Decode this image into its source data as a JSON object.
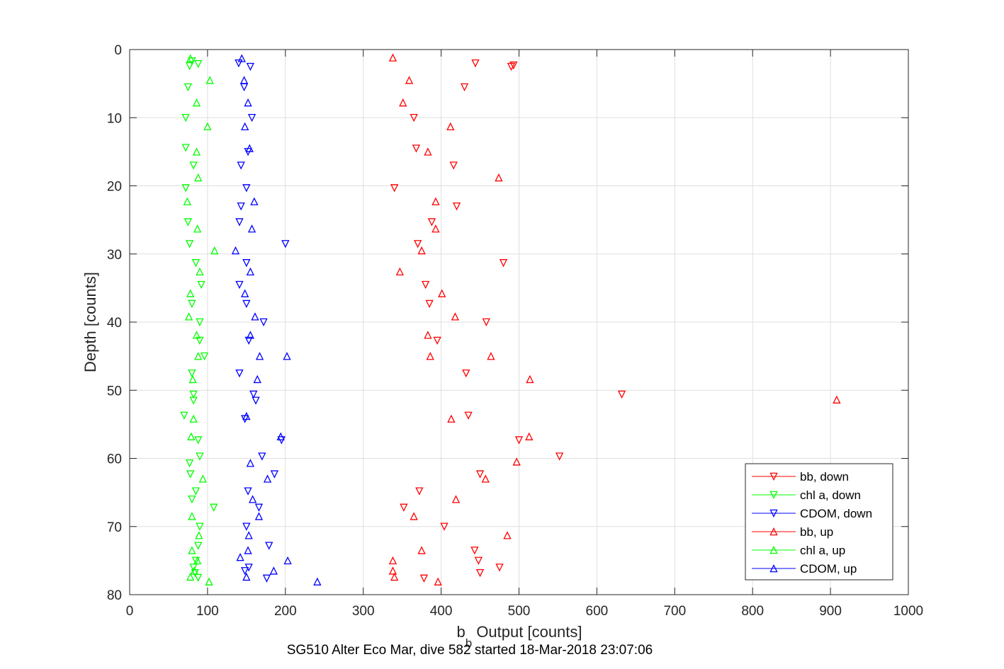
{
  "chart_data": {
    "type": "scatter",
    "xlabel_main": "b",
    "xlabel_sub": "b",
    "xlabel_rest": " Output [counts]",
    "ylabel": "Depth [counts]",
    "caption": "SG510 Alter Eco Mar, dive 582 started 18-Mar-2018 23:07:06",
    "xlim": [
      0,
      1000
    ],
    "ylim": [
      0,
      80
    ],
    "y_reversed": true,
    "grid": true,
    "legend_position": "bottom-right",
    "x_ticks": [
      0,
      100,
      200,
      300,
      400,
      500,
      600,
      700,
      800,
      900,
      1000
    ],
    "y_ticks": [
      0,
      10,
      20,
      30,
      40,
      50,
      60,
      70,
      80
    ],
    "series": [
      {
        "name": "bb, down",
        "color": "#ff0000",
        "marker": "triangle-down",
        "points": [
          [
            444,
            2
          ],
          [
            493,
            2.3
          ],
          [
            490,
            2.5
          ],
          [
            430,
            5.5
          ],
          [
            365,
            10
          ],
          [
            368,
            14.5
          ],
          [
            416,
            17
          ],
          [
            340,
            20.3
          ],
          [
            420,
            23
          ],
          [
            388,
            25.3
          ],
          [
            370,
            28.5
          ],
          [
            480,
            31.3
          ],
          [
            380,
            34.5
          ],
          [
            385,
            37.3
          ],
          [
            458,
            40
          ],
          [
            395,
            42.7
          ],
          [
            432,
            47.5
          ],
          [
            632,
            50.6
          ],
          [
            435,
            53.7
          ],
          [
            500,
            57.3
          ],
          [
            552,
            59.7
          ],
          [
            450,
            62.3
          ],
          [
            372,
            64.8
          ],
          [
            352,
            67.2
          ],
          [
            404,
            70
          ],
          [
            443,
            73.5
          ],
          [
            448,
            75
          ],
          [
            475,
            76
          ],
          [
            450,
            76.8
          ],
          [
            378,
            77.6
          ]
        ]
      },
      {
        "name": "chl a, down",
        "color": "#00ff00",
        "marker": "triangle-down",
        "points": [
          [
            80,
            1.7
          ],
          [
            88,
            2.1
          ],
          [
            77,
            2.4
          ],
          [
            75,
            5.5
          ],
          [
            72,
            10
          ],
          [
            72,
            14.4
          ],
          [
            82,
            17
          ],
          [
            72,
            20.3
          ],
          [
            75,
            25.3
          ],
          [
            77,
            28.5
          ],
          [
            85,
            31.3
          ],
          [
            92,
            34.5
          ],
          [
            80,
            37.3
          ],
          [
            90,
            40
          ],
          [
            90,
            42.7
          ],
          [
            96,
            45
          ],
          [
            80,
            47.5
          ],
          [
            82,
            50.6
          ],
          [
            82,
            51.5
          ],
          [
            70,
            53.7
          ],
          [
            88,
            57.3
          ],
          [
            90,
            59.7
          ],
          [
            77,
            60.7
          ],
          [
            78,
            62.3
          ],
          [
            85,
            64.8
          ],
          [
            80,
            66
          ],
          [
            108,
            67.2
          ],
          [
            90,
            70
          ],
          [
            88,
            72.8
          ],
          [
            85,
            75
          ],
          [
            82,
            76
          ],
          [
            84,
            76.8
          ],
          [
            88,
            77.5
          ]
        ]
      },
      {
        "name": "CDOM, down",
        "color": "#0000ff",
        "marker": "triangle-down",
        "points": [
          [
            140,
            2
          ],
          [
            155,
            2.5
          ],
          [
            147,
            5.5
          ],
          [
            157,
            10
          ],
          [
            152,
            15
          ],
          [
            143,
            17
          ],
          [
            150,
            20.3
          ],
          [
            143,
            23
          ],
          [
            141,
            25.3
          ],
          [
            200,
            28.5
          ],
          [
            150,
            31.3
          ],
          [
            141,
            34.5
          ],
          [
            150,
            37.3
          ],
          [
            172,
            40
          ],
          [
            153,
            42.7
          ],
          [
            141,
            47.5
          ],
          [
            159,
            50.6
          ],
          [
            162,
            51.5
          ],
          [
            148,
            54.2
          ],
          [
            195,
            57.3
          ],
          [
            170,
            59.7
          ],
          [
            186,
            62.3
          ],
          [
            152,
            64.8
          ],
          [
            166,
            67.2
          ],
          [
            150,
            70
          ],
          [
            179,
            72.8
          ],
          [
            153,
            76
          ],
          [
            148,
            76.5
          ],
          [
            176,
            77.6
          ]
        ]
      },
      {
        "name": "bb, up",
        "color": "#ff0000",
        "marker": "triangle-up",
        "points": [
          [
            338,
            1.2
          ],
          [
            359,
            4.5
          ],
          [
            351,
            7.8
          ],
          [
            412,
            11.3
          ],
          [
            383,
            15
          ],
          [
            474,
            18.8
          ],
          [
            393,
            22.3
          ],
          [
            393,
            26.3
          ],
          [
            375,
            29.5
          ],
          [
            347,
            32.6
          ],
          [
            401,
            35.8
          ],
          [
            418,
            39.2
          ],
          [
            383,
            41.9
          ],
          [
            386,
            45
          ],
          [
            464,
            45
          ],
          [
            514,
            48.4
          ],
          [
            908,
            51.4
          ],
          [
            413,
            54.2
          ],
          [
            513,
            56.8
          ],
          [
            497,
            60.5
          ],
          [
            457,
            63
          ],
          [
            419,
            66
          ],
          [
            365,
            68.5
          ],
          [
            485,
            71.3
          ],
          [
            375,
            73.5
          ],
          [
            338,
            75
          ],
          [
            338,
            76.5
          ],
          [
            340,
            77.4
          ],
          [
            396,
            78.1
          ]
        ]
      },
      {
        "name": "chl a, up",
        "color": "#00ff00",
        "marker": "triangle-up",
        "points": [
          [
            78,
            1.3
          ],
          [
            103,
            4.5
          ],
          [
            86,
            7.8
          ],
          [
            100,
            11.3
          ],
          [
            86,
            15
          ],
          [
            88,
            18.8
          ],
          [
            74,
            22.3
          ],
          [
            87,
            26.3
          ],
          [
            109,
            29.5
          ],
          [
            90,
            32.6
          ],
          [
            78,
            35.8
          ],
          [
            76,
            39.2
          ],
          [
            86,
            41.9
          ],
          [
            88,
            45
          ],
          [
            81,
            48.4
          ],
          [
            82,
            54.2
          ],
          [
            79,
            56.8
          ],
          [
            94,
            63
          ],
          [
            80,
            68.5
          ],
          [
            89,
            71.3
          ],
          [
            80,
            73.5
          ],
          [
            87,
            75
          ],
          [
            83,
            76.5
          ],
          [
            78,
            77.4
          ],
          [
            102,
            78.1
          ]
        ]
      },
      {
        "name": "CDOM, up",
        "color": "#0000ff",
        "marker": "triangle-up",
        "points": [
          [
            144,
            1.3
          ],
          [
            147,
            4.5
          ],
          [
            152,
            7.8
          ],
          [
            148,
            11.3
          ],
          [
            154,
            14.5
          ],
          [
            160,
            22.3
          ],
          [
            157,
            26.3
          ],
          [
            136,
            29.5
          ],
          [
            155,
            32.6
          ],
          [
            148,
            35.8
          ],
          [
            161,
            39.2
          ],
          [
            155,
            41.9
          ],
          [
            167,
            45
          ],
          [
            202,
            45
          ],
          [
            164,
            48.4
          ],
          [
            150,
            53.8
          ],
          [
            194,
            56.8
          ],
          [
            155,
            60.7
          ],
          [
            177,
            63
          ],
          [
            158,
            66
          ],
          [
            166,
            68.5
          ],
          [
            153,
            71.3
          ],
          [
            152,
            73.5
          ],
          [
            142,
            74.5
          ],
          [
            203,
            75
          ],
          [
            185,
            76.5
          ],
          [
            150,
            77.4
          ],
          [
            241,
            78.1
          ]
        ]
      }
    ]
  }
}
